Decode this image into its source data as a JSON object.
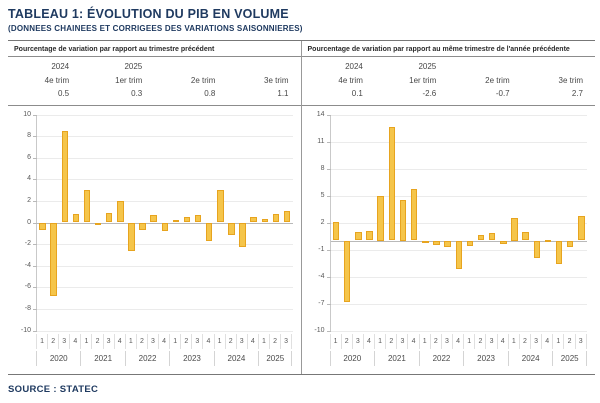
{
  "page": {
    "title": "TABLEAU 1: ÉVOLUTION DU PIB EN VOLUME",
    "subtitle": "(DONNEES CHAINEES ET CORRIGEES DES VARIATIONS SAISONNIERES)",
    "source": "SOURCE : STATEC"
  },
  "colors": {
    "brand_navy": "#1f3a60",
    "bar_fill": "#f5c54a",
    "bar_border": "#e7a41f",
    "gridline": "#ebebeb",
    "zero_line": "#b9b9b9",
    "table_border": "#777777",
    "panel_divider": "#999999"
  },
  "panels": [
    {
      "header": "Pourcentage de variation par rapport au trimestre précédent",
      "summary": {
        "years": [
          "2024",
          "2025",
          "",
          ""
        ],
        "quarters": [
          "4e trim",
          "1er trim",
          "2e trim",
          "3e trim"
        ],
        "values": [
          "0.5",
          "0.3",
          "0.8",
          "1.1"
        ]
      }
    },
    {
      "header": "Pourcentage de variation par rapport au même trimestre de l'année précédente",
      "summary": {
        "years": [
          "2024",
          "2025",
          "",
          ""
        ],
        "quarters": [
          "4e trim",
          "1er trim",
          "2e trim",
          "3e trim"
        ],
        "values": [
          "0.1",
          "-2.6",
          "-0.7",
          "2.7"
        ]
      }
    }
  ],
  "chart_data": [
    {
      "type": "bar",
      "title": "Pourcentage de variation par rapport au trimestre précédent",
      "xlabel": "",
      "ylabel": "",
      "ylim": [
        -10,
        10
      ],
      "yticks": [
        10,
        8,
        6,
        4,
        2,
        0,
        -2,
        -4,
        -6,
        -8,
        -10
      ],
      "grid": true,
      "legend": "none",
      "x_years": [
        "2020",
        "2021",
        "2022",
        "2023",
        "2024",
        "2025"
      ],
      "x_quarters": [
        [
          1,
          2,
          3,
          4
        ],
        [
          1,
          2,
          3,
          4
        ],
        [
          1,
          2,
          3,
          4
        ],
        [
          1,
          2,
          3,
          4
        ],
        [
          1,
          2,
          3,
          4
        ],
        [
          1,
          2,
          3
        ]
      ],
      "values": [
        -0.7,
        -6.8,
        8.5,
        0.8,
        3.0,
        -0.1,
        0.9,
        2.0,
        -2.6,
        -0.7,
        0.7,
        -0.8,
        0.2,
        0.5,
        0.7,
        -1.7,
        3.0,
        -1.2,
        -2.3,
        0.5,
        0.3,
        0.8,
        1.1
      ]
    },
    {
      "type": "bar",
      "title": "Pourcentage de variation par rapport au même trimestre de l'année précédente",
      "xlabel": "",
      "ylabel": "",
      "ylim": [
        -10,
        14
      ],
      "yticks": [
        14,
        11,
        8,
        5,
        2,
        -1,
        -4,
        -7,
        -10
      ],
      "grid": true,
      "legend": "none",
      "x_years": [
        "2020",
        "2021",
        "2022",
        "2023",
        "2024",
        "2025"
      ],
      "x_quarters": [
        [
          1,
          2,
          3,
          4
        ],
        [
          1,
          2,
          3,
          4
        ],
        [
          1,
          2,
          3,
          4
        ],
        [
          1,
          2,
          3,
          4
        ],
        [
          1,
          2,
          3,
          4
        ],
        [
          1,
          2,
          3
        ]
      ],
      "values": [
        2.1,
        -6.8,
        0.9,
        1.1,
        5.0,
        12.6,
        4.5,
        5.7,
        -0.1,
        -0.5,
        -0.7,
        -3.2,
        -0.6,
        0.6,
        0.8,
        -0.4,
        2.5,
        1.0,
        -2.0,
        0.1,
        -2.6,
        -0.7,
        2.7
      ]
    }
  ]
}
